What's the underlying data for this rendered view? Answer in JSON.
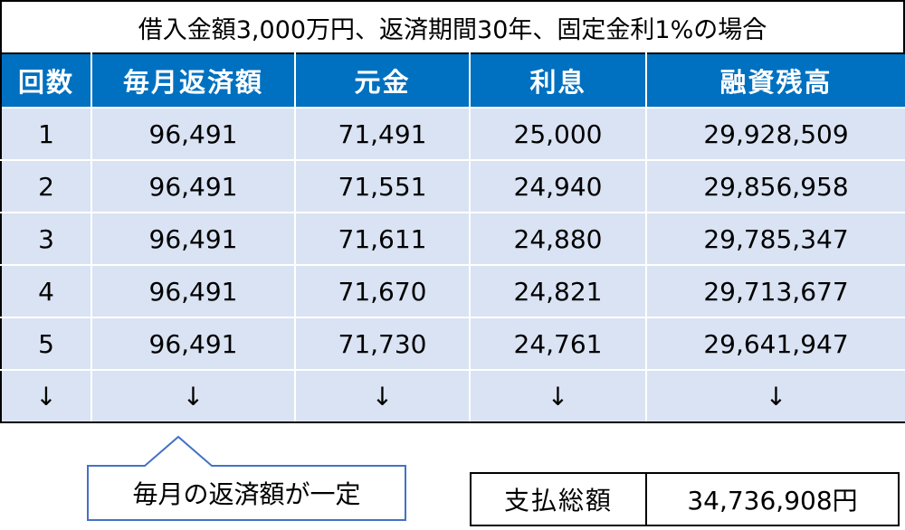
{
  "header": {
    "title": "借入金額3,000万円、返済期間30年、固定金利1%の場合"
  },
  "table": {
    "columns": [
      "回数",
      "毎月返済額",
      "元金",
      "利息",
      "融資残高"
    ],
    "rows": [
      [
        "1",
        "96,491",
        "71,491",
        "25,000",
        "29,928,509"
      ],
      [
        "2",
        "96,491",
        "71,551",
        "24,940",
        "29,856,958"
      ],
      [
        "3",
        "96,491",
        "71,611",
        "24,880",
        "29,785,347"
      ],
      [
        "4",
        "96,491",
        "71,670",
        "24,821",
        "29,713,677"
      ],
      [
        "5",
        "96,491",
        "71,730",
        "24,761",
        "29,641,947"
      ],
      [
        "↓",
        "↓",
        "↓",
        "↓",
        "↓"
      ]
    ]
  },
  "callout": {
    "text": "毎月の返済額が一定"
  },
  "total": {
    "label": "支払総額",
    "value": "34,736,908円"
  }
}
